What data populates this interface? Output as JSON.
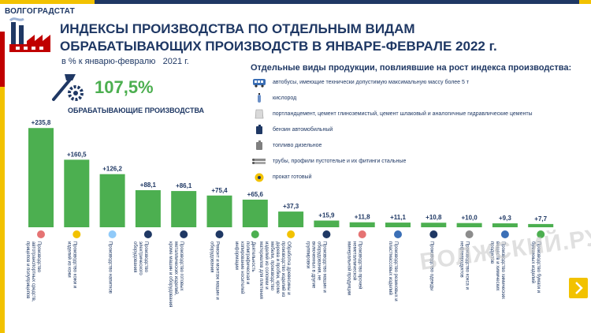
{
  "header": {
    "brand": "ВОЛГОГРАДСТАТ",
    "title_line1": "ИНДЕКСЫ ПРОИЗВОДСТВА ПО ОТДЕЛЬНЫМ ВИДАМ",
    "title_line2": "ОБРАБАТЫВАЮЩИХ ПРОИЗВОДСТВ В ЯНВАРЕ-ФЕВРАЛЕ 2022 г.",
    "subtitle": "в % к январю-февралю   2021 г."
  },
  "summary": {
    "value": "107,5%",
    "label": "ОБРАБАТЫВАЮЩИЕ ПРОИЗВОДСТВА"
  },
  "products": {
    "title": "Отдельные виды продукции, повлиявшие на рост индекса производства:",
    "items": [
      {
        "icon": "bus-icon",
        "text": "автобусы, имеющие технически допустимую максимальную массу более 5 т"
      },
      {
        "icon": "oxygen-cylinder-icon",
        "text": "кислород"
      },
      {
        "icon": "cement-bag-icon",
        "text": "портландцемент, цемент глиноземистый, цемент шлаковый и аналогичные гидравлические цементы"
      },
      {
        "icon": "petrol-canister-icon",
        "text": "бензин автомобильный"
      },
      {
        "icon": "diesel-canister-icon",
        "text": "топливо дизельное"
      },
      {
        "icon": "pipes-icon",
        "text": "трубы, профили пустотелые и их фитинги стальные"
      },
      {
        "icon": "rolled-steel-icon",
        "text": "прокат готовый"
      }
    ]
  },
  "watermark": "ВОЛЖСКИЙ.РУ",
  "colors": {
    "bar": "#4caf50",
    "navy": "#1f3864",
    "yellow": "#f2c200",
    "red": "#c00000"
  },
  "chart_data": {
    "type": "bar",
    "categories": [
      "Производство автотранспортных средств, прицепов и полуприцепов",
      "Производство кожи и изделий из кожи",
      "Производство напитков",
      "Производство электрического оборудования",
      "Производство готовых металлических изделий, кроме машин и оборудования",
      "Ремонт и монтаж машин и оборудования",
      "Деятельность полиграфическая и копирование носителей информации",
      "Обработка древесины и производство изделий из дерева и пробки, кроме мебели, производство изделий из соломки и материалов для плетения",
      "Производство машин и оборудования, не включенных в другие группировки",
      "Производство прочей неметаллической минеральной продукции",
      "Производство резиновых и пластмассовых изделий",
      "Производство одежды",
      "Производство кокса и нефтепродуктов",
      "Производство химических веществ и химических продуктов",
      "Производство бумаги и бумажных изделий"
    ],
    "values": [
      235.8,
      160.5,
      126.2,
      88.1,
      86.1,
      75.4,
      65.6,
      37.3,
      15.9,
      11.8,
      11.1,
      10.8,
      10.0,
      9.3,
      7.7
    ],
    "labels": [
      "+235,8",
      "+160,5",
      "+126,2",
      "+88,1",
      "+86,1",
      "+75,4",
      "+65,6",
      "+37,3",
      "+15,9",
      "+11,8",
      "+11,1",
      "+10,8",
      "+10,0",
      "+9,3",
      "+7,7"
    ],
    "icons": [
      "car-icon",
      "bag-icon",
      "bottle-icon",
      "plug-icon",
      "gears-icon",
      "wrench-icon",
      "printer-icon",
      "wood-icon",
      "machine-icon",
      "mineral-icon",
      "boot-icon",
      "shirt-icon",
      "oil-barrel-icon",
      "chemical-flask-icon",
      "paper-icon"
    ],
    "ylim": [
      0,
      240
    ]
  }
}
